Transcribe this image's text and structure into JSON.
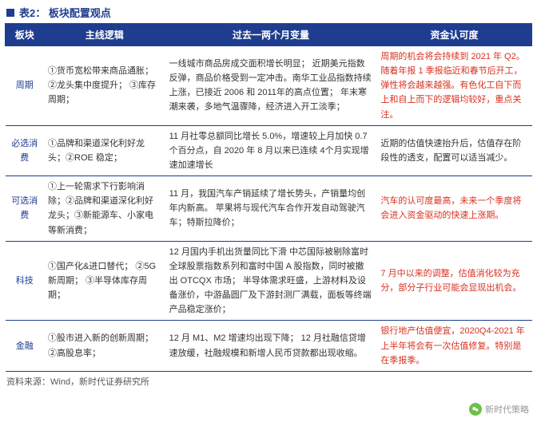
{
  "title": "表2：  板块配置观点",
  "headers": [
    "板块",
    "主线逻辑",
    "过去一两个月变量",
    "资金认可度"
  ],
  "rows": [
    {
      "sector": "周期",
      "logic": "①货币宽松带来商品通胀；\n②龙头集中度提升；\n③库存周期；",
      "change": "一线城市商品房成交面积增长明显；\n近期美元指数反弹，商品价格受到一定冲击。南华工业品指数持续上涨，已接近 2006 和 2011年的高点位置；\n年末寒潮来袭，多地气温骤降，经济进入开工淡季；",
      "approval": "周期的机会将会持续到 2021 年 Q2。随着年报 1 季报临近和春节后开工，弹性将会越来越强。有色化工自下而上和自上而下的逻辑均较好，重点关注。",
      "approval_red": true
    },
    {
      "sector": "必选消费",
      "logic": "①品牌和渠道深化利好龙头；②ROE 稳定；",
      "change": "11 月社零总额同比增长 5.0%，增速较上月加快 0.7 个百分点，自 2020 年 8 月以来已连续 4个月实现增速加速增长",
      "approval": "近期的估值快速抬升后，估值存在阶段性的透支，配置可以适当减少。",
      "approval_red": false
    },
    {
      "sector": "可选消费",
      "logic": "①上一轮需求下行影响消除；②品牌和渠道深化利好龙头；③新能源车、小家电等新消费；",
      "change": "11 月，我国汽车产销延续了增长势头，产销量均创年内新高。\n苹果将与现代汽车合作开发自动驾驶汽车；特斯拉降价；",
      "approval": "汽车的认可度最高，未来一个季度将会进入资金驱动的快速上涨期。",
      "approval_red": true
    },
    {
      "sector": "科技",
      "logic": "①国产化&进口替代；\n②5G 新周期；\n③半导体库存周期；",
      "change": "12 月国内手机出货量同比下滑\n中芯国际被剔除富时全球股票指数系列和富时中国 A 股指数，同时被撤出 OTCQX 市场；\n半导体需求旺盛，上游材料及设备涨价，中游晶圆厂及下游封测厂满载，面板等终端产品稳定涨价；",
      "approval": "7 月中以来的调整，估值消化较为充分，部分子行业可能会显现出机会。",
      "approval_red": true
    },
    {
      "sector": "金融",
      "logic": "①股市进入新的创新周期；②高股息率；",
      "change": "12 月 M1、M2 增速均出现下降；\n12 月社融信贷增速放缓，社融规模和新增人民币贷款都出现收缩。",
      "approval": "银行地产估值便宜，2020Q4-2021 年上半年将会有一次估值修复。特别是在季报季。",
      "approval_red": true
    }
  ],
  "source": "资料来源：Wind，新时代证券研究所",
  "watermark": "新时代策略"
}
